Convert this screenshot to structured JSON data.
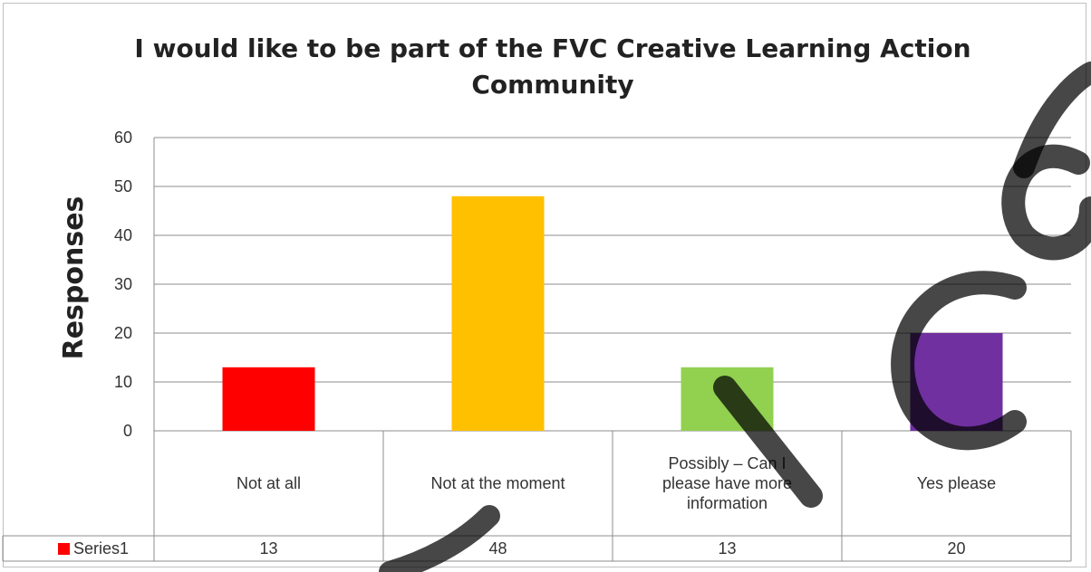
{
  "chart_data": {
    "type": "bar",
    "title": [
      "I would like to be part of the FVC Creative Learning Action",
      "Community"
    ],
    "xlabel": "",
    "ylabel": "Responses",
    "ylim": [
      0,
      60
    ],
    "yticks": [
      "0",
      "10",
      "20",
      "30",
      "40",
      "50",
      "60"
    ],
    "grid": true,
    "categories": [
      [
        "Not at all"
      ],
      [
        "Not at the moment"
      ],
      [
        "Possibly – Can I",
        "please have more",
        "information"
      ],
      [
        "Yes please"
      ]
    ],
    "series": [
      {
        "name": "Series1",
        "values": [
          13,
          48,
          13,
          20
        ]
      }
    ],
    "bar_colors": [
      "#ff0000",
      "#ffc000",
      "#92d050",
      "#7030a0"
    ],
    "legend_color": "#ff0000",
    "data_table": {
      "labels": [
        "13",
        "48",
        "13",
        "20"
      ]
    }
  }
}
